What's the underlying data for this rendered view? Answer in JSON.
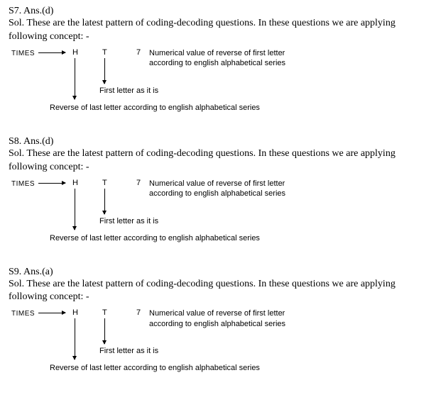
{
  "solutions": [
    {
      "id": "S7",
      "answer": "Ans.(d)",
      "sol_text": "Sol. These are the latest pattern of coding-decoding questions. In these questions we are applying following concept: -"
    },
    {
      "id": "S8",
      "answer": "Ans.(d)",
      "sol_text": "Sol. These are the latest pattern of coding-decoding questions. In these questions we are applying following concept: -"
    },
    {
      "id": "S9",
      "answer": "Ans.(a)",
      "sol_text": "Sol. These are the latest pattern of coding-decoding questions. In these questions we are applying following concept: -"
    }
  ],
  "diagram": {
    "word": "TIMES",
    "col1": "H",
    "col2": "T",
    "col3": "7",
    "desc_num_line1": "Numerical value of reverse of first letter",
    "desc_num_line2": "according to english alphabetical series",
    "desc_first": "First letter as it is",
    "desc_reverse": "Reverse of last letter according to english alphabetical series"
  }
}
